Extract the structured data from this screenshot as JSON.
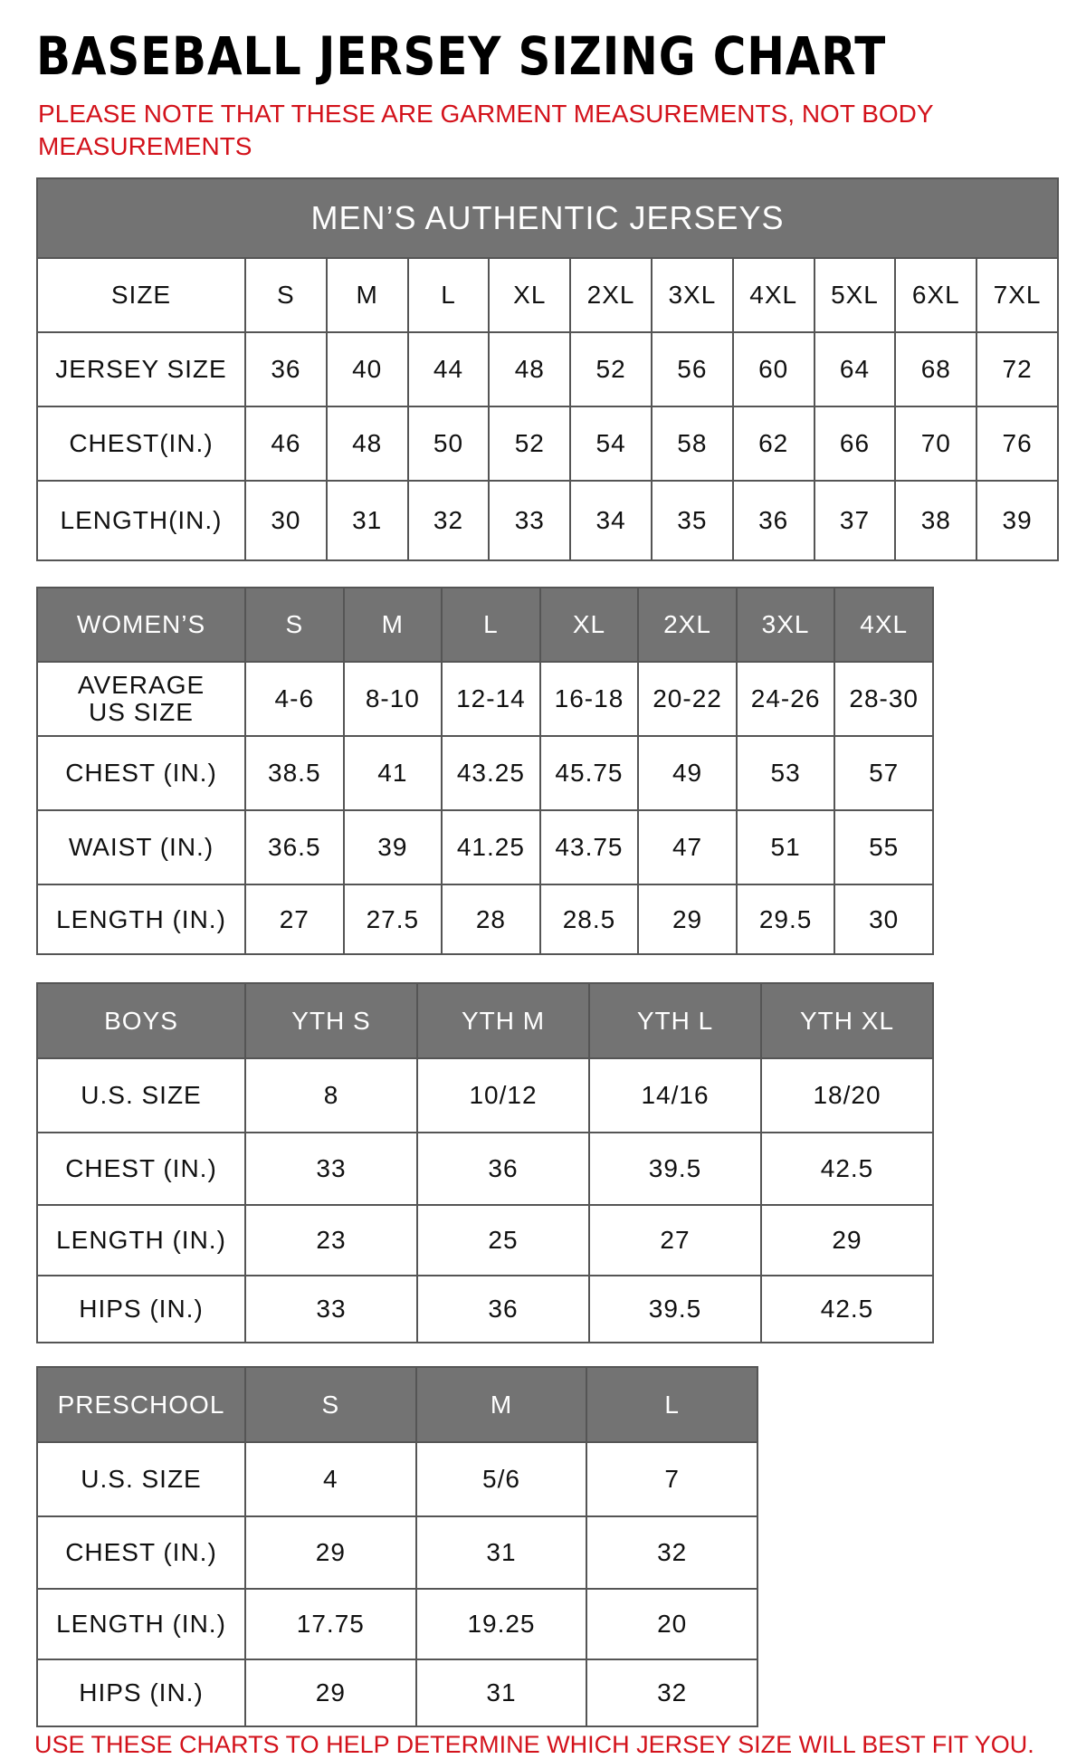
{
  "title": "BASEBALL JERSEY SIZING CHART",
  "note": "PLEASE NOTE THAT THESE ARE GARMENT MEASUREMENTS, NOT BODY MEASUREMENTS",
  "footer": "USE THESE CHARTS TO HELP DETERMINE WHICH JERSEY SIZE WILL BEST FIT YOU.",
  "colors": {
    "header_bg": "#737373",
    "note_red": "#d3121b"
  },
  "mens": {
    "title": "MEN’S AUTHENTIC JERSEYS",
    "rows": [
      [
        "SIZE",
        "S",
        "M",
        "L",
        "XL",
        "2XL",
        "3XL",
        "4XL",
        "5XL",
        "6XL",
        "7XL"
      ],
      [
        "JERSEY SIZE",
        "36",
        "40",
        "44",
        "48",
        "52",
        "56",
        "60",
        "64",
        "68",
        "72"
      ],
      [
        "CHEST(IN.)",
        "46",
        "48",
        "50",
        "52",
        "54",
        "58",
        "62",
        "66",
        "70",
        "76"
      ],
      [
        "LENGTH(IN.)",
        "30",
        "31",
        "32",
        "33",
        "34",
        "35",
        "36",
        "37",
        "38",
        "39"
      ]
    ]
  },
  "womens": {
    "header": [
      "WOMEN’S",
      "S",
      "M",
      "L",
      "XL",
      "2XL",
      "3XL",
      "4XL"
    ],
    "rows": [
      [
        "AVERAGE US SIZE",
        "4-6",
        "8-10",
        "12-14",
        "16-18",
        "20-22",
        "24-26",
        "28-30"
      ],
      [
        "CHEST (IN.)",
        "38.5",
        "41",
        "43.25",
        "45.75",
        "49",
        "53",
        "57"
      ],
      [
        "WAIST (IN.)",
        "36.5",
        "39",
        "41.25",
        "43.75",
        "47",
        "51",
        "55"
      ],
      [
        "LENGTH (IN.)",
        "27",
        "27.5",
        "28",
        "28.5",
        "29",
        "29.5",
        "30"
      ]
    ]
  },
  "boys": {
    "header": [
      "BOYS",
      "YTH S",
      "YTH M",
      "YTH L",
      "YTH XL"
    ],
    "rows": [
      [
        "U.S. SIZE",
        "8",
        "10/12",
        "14/16",
        "18/20"
      ],
      [
        "CHEST (IN.)",
        "33",
        "36",
        "39.5",
        "42.5"
      ],
      [
        "LENGTH (IN.)",
        "23",
        "25",
        "27",
        "29"
      ],
      [
        "HIPS (IN.)",
        "33",
        "36",
        "39.5",
        "42.5"
      ]
    ]
  },
  "preschool": {
    "header": [
      "PRESCHOOL",
      "S",
      "M",
      "L"
    ],
    "rows": [
      [
        "U.S. SIZE",
        "4",
        "5/6",
        "7"
      ],
      [
        "CHEST (IN.)",
        "29",
        "31",
        "32"
      ],
      [
        "LENGTH (IN.)",
        "17.75",
        "19.25",
        "20"
      ],
      [
        "HIPS (IN.)",
        "29",
        "31",
        "32"
      ]
    ]
  }
}
